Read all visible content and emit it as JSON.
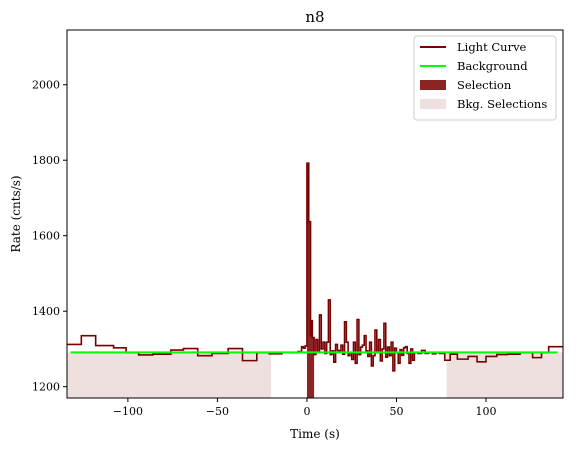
{
  "chart_data": {
    "type": "line",
    "title": "n8",
    "xlabel": "Time (s)",
    "ylabel": "Rate (cnts/s)",
    "xlim": [
      -134,
      143
    ],
    "ylim": [
      1170,
      2145
    ],
    "xticks": [
      -100,
      -50,
      0,
      50,
      100
    ],
    "yticks": [
      1200,
      1400,
      1600,
      1800,
      2000
    ],
    "grid": false,
    "legend_position": "top-right",
    "legend": [
      {
        "label": "Light Curve",
        "kind": "line",
        "color": "#7a0000"
      },
      {
        "label": "Background",
        "kind": "line",
        "color": "#00ff00"
      },
      {
        "label": "Selection",
        "kind": "patch",
        "color": "#8b2525"
      },
      {
        "label": "Bkg. Selections",
        "kind": "patch",
        "color": "#efe0e0"
      }
    ],
    "background_level": 1291,
    "background_range": [
      -132,
      140
    ],
    "selection": [
      0,
      4
    ],
    "bkg_selections": [
      [
        -134,
        -20
      ],
      [
        78,
        143
      ]
    ],
    "light_curve": {
      "color": "#7a0000",
      "edges": [
        -134,
        -126,
        -118,
        -108,
        -101,
        -94,
        -86,
        -76,
        -69,
        -61,
        -53,
        -44,
        -36,
        -28,
        -21,
        -14,
        -9,
        -5,
        -3,
        -2,
        -1,
        0,
        1,
        2,
        2.5,
        3,
        4,
        5,
        6,
        7,
        8,
        9,
        10,
        11,
        12,
        13,
        14,
        15,
        16,
        17,
        18,
        19,
        20,
        21,
        22,
        23,
        24,
        25,
        26,
        27,
        28,
        29,
        30,
        31,
        32,
        33,
        34,
        35,
        36,
        37,
        38,
        39,
        40,
        41,
        42,
        43,
        44,
        45,
        46,
        47,
        48,
        49,
        50,
        51,
        52,
        53,
        54,
        55,
        56,
        57,
        58,
        59,
        60,
        62,
        64,
        66,
        68,
        70,
        72,
        74,
        77,
        80,
        84,
        90,
        95,
        100,
        106,
        112,
        119,
        126,
        131,
        135,
        143
      ],
      "values": [
        1312,
        1335,
        1309,
        1303,
        1290,
        1284,
        1286,
        1297,
        1301,
        1282,
        1288,
        1301,
        1269,
        1290,
        1287,
        1291,
        1290,
        1293,
        1306,
        1302,
        1308,
        1792,
        1637,
        1335,
        1375,
        1330,
        1285,
        1325,
        1292,
        1390,
        1300,
        1318,
        1288,
        1318,
        1430,
        1285,
        1295,
        1265,
        1312,
        1296,
        1295,
        1310,
        1286,
        1372,
        1318,
        1282,
        1290,
        1272,
        1318,
        1262,
        1378,
        1285,
        1305,
        1310,
        1335,
        1295,
        1280,
        1318,
        1255,
        1282,
        1350,
        1290,
        1325,
        1268,
        1300,
        1368,
        1278,
        1305,
        1282,
        1318,
        1242,
        1302,
        1290,
        1262,
        1298,
        1283,
        1303,
        1306,
        1288,
        1262,
        1300,
        1270,
        1290,
        1288,
        1296,
        1288,
        1291,
        1287,
        1290,
        1288,
        1270,
        1286,
        1273,
        1280,
        1266,
        1280,
        1285,
        1286,
        1290,
        1277,
        1290,
        1306
      ]
    }
  }
}
